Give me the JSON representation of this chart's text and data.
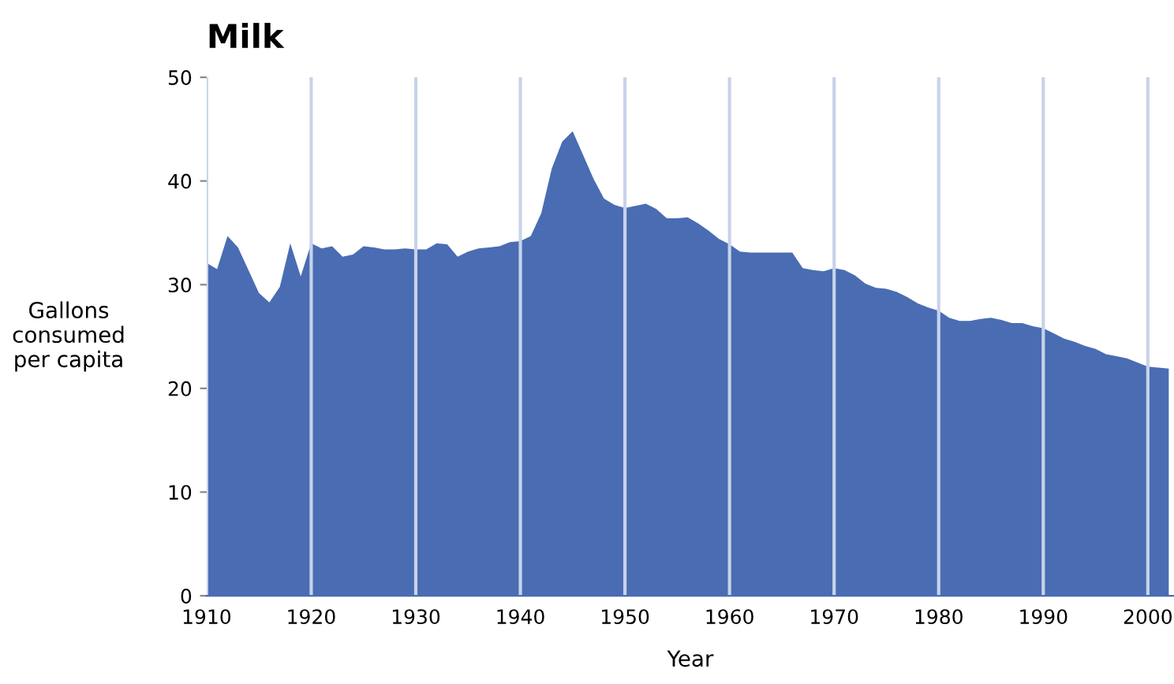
{
  "chart_data": {
    "type": "area",
    "title": "Milk",
    "xlabel": "Year",
    "ylabel": "Gallons\nconsumed\nper capita",
    "x": [
      1910,
      1911,
      1912,
      1913,
      1914,
      1915,
      1916,
      1917,
      1918,
      1919,
      1920,
      1921,
      1922,
      1923,
      1924,
      1925,
      1926,
      1927,
      1928,
      1929,
      1930,
      1931,
      1932,
      1933,
      1934,
      1935,
      1936,
      1937,
      1938,
      1939,
      1940,
      1941,
      1942,
      1943,
      1944,
      1945,
      1946,
      1947,
      1948,
      1949,
      1950,
      1951,
      1952,
      1953,
      1954,
      1955,
      1956,
      1957,
      1958,
      1959,
      1960,
      1961,
      1962,
      1963,
      1964,
      1965,
      1966,
      1967,
      1968,
      1969,
      1970,
      1971,
      1972,
      1973,
      1974,
      1975,
      1976,
      1977,
      1978,
      1979,
      1980,
      1981,
      1982,
      1983,
      1984,
      1985,
      1986,
      1987,
      1988,
      1989,
      1990,
      1991,
      1992,
      1993,
      1994,
      1995,
      1996,
      1997,
      1998,
      1999,
      2000,
      2001,
      2002
    ],
    "series": [
      {
        "color": "#4a6cb3",
        "values": [
          32.1,
          31.5,
          34.7,
          33.6,
          31.4,
          29.2,
          28.3,
          29.8,
          34.0,
          30.8,
          34.0,
          33.5,
          33.7,
          32.7,
          32.9,
          33.7,
          33.6,
          33.4,
          33.4,
          33.5,
          33.4,
          33.4,
          34.0,
          33.9,
          32.7,
          33.2,
          33.5,
          33.6,
          33.7,
          34.1,
          34.2,
          34.7,
          36.9,
          41.2,
          43.8,
          44.8,
          42.5,
          40.2,
          38.3,
          37.7,
          37.4,
          37.6,
          37.8,
          37.3,
          36.4,
          36.4,
          36.5,
          35.9,
          35.2,
          34.4,
          33.9,
          33.2,
          33.1,
          33.1,
          33.1,
          33.1,
          33.1,
          31.6,
          31.4,
          31.3,
          31.6,
          31.4,
          30.9,
          30.1,
          29.7,
          29.6,
          29.3,
          28.8,
          28.2,
          27.8,
          27.5,
          26.8,
          26.5,
          26.5,
          26.7,
          26.8,
          26.6,
          26.3,
          26.3,
          26.0,
          25.8,
          25.3,
          24.8,
          24.5,
          24.1,
          23.8,
          23.3,
          23.1,
          22.9,
          22.5,
          22.1,
          22.0,
          21.9
        ]
      }
    ],
    "xlim": [
      1910,
      2002.5
    ],
    "ylim": [
      0,
      50
    ],
    "xticks": [
      1910,
      1920,
      1930,
      1940,
      1950,
      1960,
      1970,
      1980,
      1990,
      2000
    ],
    "yticks": [
      0,
      10,
      20,
      30,
      40,
      50
    ],
    "grid": "x"
  }
}
